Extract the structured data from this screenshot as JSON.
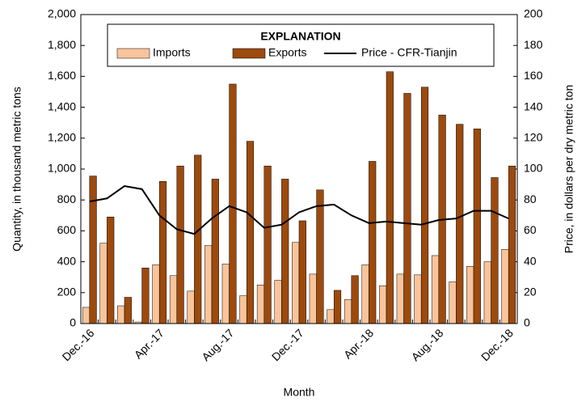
{
  "chart_data": {
    "type": "bar",
    "x_label": "Month",
    "y_label": "Quantity, in thousand metric tons",
    "y2_label": "Price, in dollars per dry metric ton",
    "legend_title": "EXPLANATION",
    "legend": "top-center",
    "categories": [
      "Dec.-16",
      null,
      null,
      null,
      "Apr.-17",
      null,
      null,
      null,
      "Aug.-17",
      null,
      null,
      null,
      "Dec.-17",
      null,
      null,
      null,
      "Apr.-18",
      null,
      null,
      null,
      "Aug.-18",
      null,
      null,
      null,
      "Dec.-18"
    ],
    "series": [
      {
        "name": "Imports",
        "color": "#f9c49b",
        "values": [
          105,
          520,
          115,
          10,
          380,
          310,
          210,
          505,
          385,
          180,
          250,
          280,
          525,
          320,
          90,
          155,
          380,
          245,
          320,
          315,
          440,
          270,
          370,
          400,
          480
        ]
      },
      {
        "name": "Exports",
        "color": "#9c4a0e",
        "values": [
          955,
          690,
          170,
          360,
          920,
          1020,
          1090,
          935,
          1550,
          1180,
          1020,
          935,
          665,
          865,
          215,
          310,
          1050,
          1630,
          1490,
          1530,
          1350,
          1290,
          1260,
          945,
          1020
        ]
      },
      {
        "name": "Price - CFR-Tianjin",
        "color": "#000000",
        "type": "line",
        "axis": "y2",
        "values": [
          79,
          81,
          89,
          87,
          70,
          61,
          58,
          68,
          76,
          72,
          62,
          64,
          72,
          76,
          77,
          70,
          65,
          66,
          65,
          64,
          67,
          68,
          73,
          73,
          68
        ]
      }
    ],
    "ylim": [
      0,
      2000
    ],
    "yticks": [
      0,
      200,
      400,
      600,
      800,
      {
        "value": 1000,
        "label": "1,000"
      },
      {
        "value": 1200,
        "label": "1,200"
      },
      {
        "value": 1400,
        "label": "1,400"
      },
      {
        "value": 1600,
        "label": "1,600"
      },
      {
        "value": 1800,
        "label": "1,800"
      },
      {
        "value": 2000,
        "label": "2,000"
      }
    ],
    "y2lim": [
      0,
      200
    ],
    "y2ticks": [
      0,
      20,
      40,
      60,
      80,
      100,
      120,
      140,
      160,
      180,
      200
    ]
  }
}
